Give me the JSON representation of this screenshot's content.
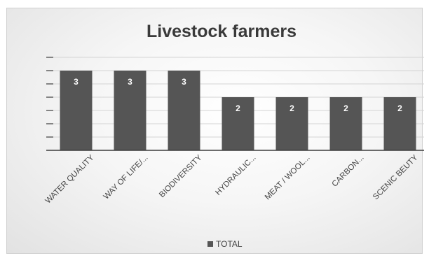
{
  "chart_data": {
    "type": "bar",
    "title": "Livestock farmers",
    "categories": [
      "WATER QUALITY",
      "WAY OF LIFE/...",
      "BIODIVERSITY",
      "HYDRAULIC...",
      "MEAT / WOOL...",
      "CARBON...",
      "SCENIC BEUTY"
    ],
    "series": [
      {
        "name": "TOTAL",
        "values": [
          3,
          3,
          3,
          2,
          2,
          2,
          2
        ]
      }
    ],
    "ylim": [
      0,
      3.5
    ],
    "grid": true,
    "legend_position": "bottom",
    "bar_color": "#555555"
  }
}
